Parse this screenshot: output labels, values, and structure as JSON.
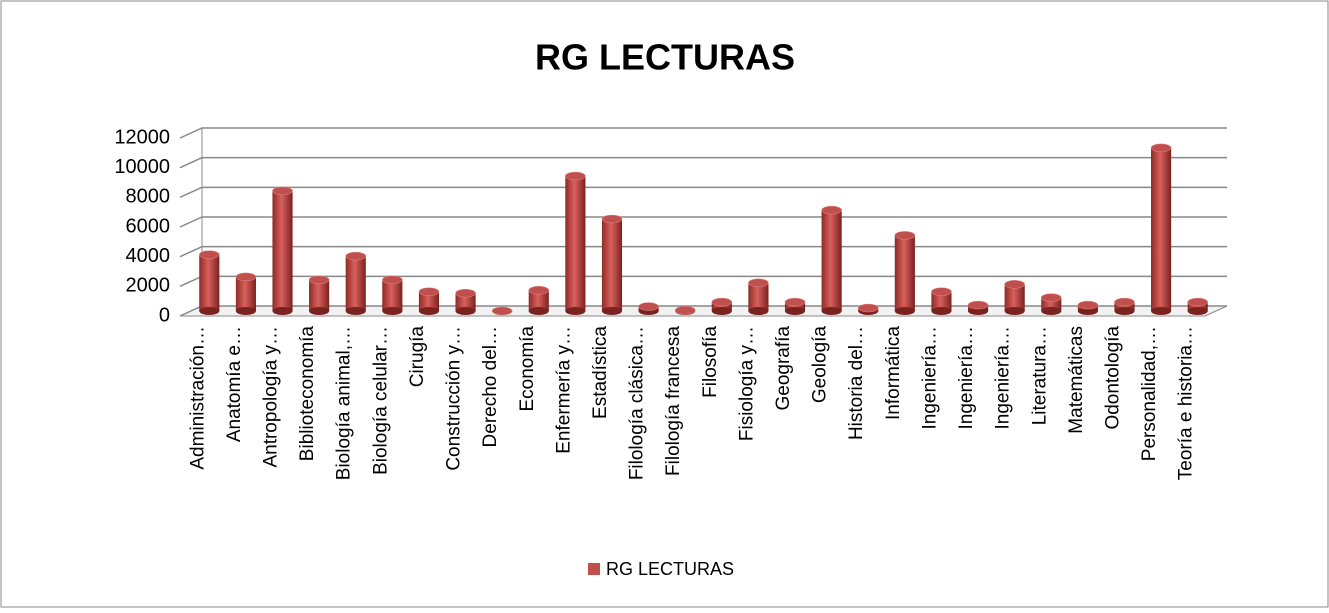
{
  "chart_data": {
    "type": "bar3d",
    "title": "RG LECTURAS",
    "categories": [
      "Administración…",
      "Anatomía e…",
      "Antropología y…",
      "Biblioteconomía",
      "Biología animal,…",
      "Biología celular…",
      "Cirugía",
      "Construcción y…",
      "Derecho del…",
      "Economía",
      "Enfermería y…",
      "Estadística",
      "Filología clásica…",
      "Filología francesa",
      "Filosofía",
      "Fisiología y…",
      "Geografía",
      "Geología",
      "Historia del…",
      "Informática",
      "Ingeniería…",
      "Ingeniería…",
      "Ingeniería…",
      "Literatura…",
      "Matemáticas",
      "Odontología",
      "Personalidad,…",
      "Teoría e historia…"
    ],
    "series": [
      {
        "name": "RG LECTURAS",
        "color": "#c0504d",
        "values": [
          3800,
          2300,
          8100,
          2100,
          3700,
          2100,
          1300,
          1200,
          0,
          1400,
          9100,
          6200,
          300,
          50,
          600,
          1900,
          600,
          6800,
          200,
          5100,
          1300,
          400,
          1800,
          900,
          400,
          600,
          11000,
          600
        ]
      }
    ],
    "ylim": [
      0,
      12000
    ],
    "yticks": [
      0,
      2000,
      4000,
      6000,
      8000,
      10000,
      12000
    ],
    "grid": true,
    "legend": "bottom"
  }
}
